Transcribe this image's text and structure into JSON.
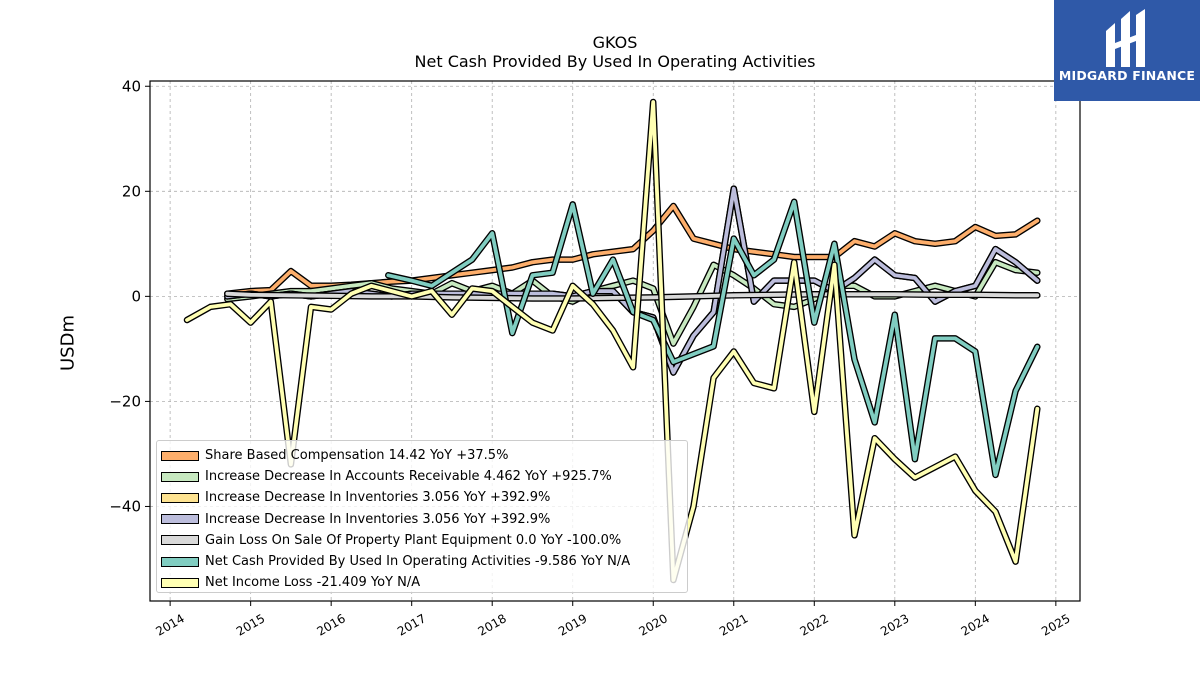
{
  "chart_data": {
    "type": "line",
    "title": "GKOS",
    "subtitle": "Net Cash Provided By Used In Operating Activities",
    "ylabel": "USDm",
    "xlim": [
      2013.75,
      2025.3
    ],
    "ylim": [
      -58,
      41
    ],
    "yticks": [
      -40,
      -20,
      0,
      20,
      40
    ],
    "ytick_labels": [
      "−40",
      "−20",
      "0",
      "20",
      "40"
    ],
    "xticks": [
      2014,
      2015,
      2016,
      2017,
      2018,
      2019,
      2020,
      2021,
      2022,
      2023,
      2024,
      2025
    ],
    "xtick_labels": [
      "2014",
      "2015",
      "2016",
      "2017",
      "2018",
      "2019",
      "2020",
      "2021",
      "2022",
      "2023",
      "2024",
      "2025"
    ],
    "grid": true,
    "legend_position": "lower-left",
    "series": [
      {
        "name": "Share Based Compensation",
        "legend": "Share Based Compensation  14.42 YoY +37.5%",
        "color": "#fdae6b",
        "points": [
          [
            2014.71,
            0.5
          ],
          [
            2015.0,
            1.0
          ],
          [
            2015.25,
            1.2
          ],
          [
            2015.5,
            4.8
          ],
          [
            2015.75,
            2.0
          ],
          [
            2016.0,
            2.0
          ],
          [
            2016.25,
            2.2
          ],
          [
            2016.5,
            2.5
          ],
          [
            2016.75,
            2.8
          ],
          [
            2017.0,
            3.0
          ],
          [
            2017.25,
            3.5
          ],
          [
            2017.5,
            4.0
          ],
          [
            2017.75,
            4.5
          ],
          [
            2018.0,
            5.0
          ],
          [
            2018.25,
            5.5
          ],
          [
            2018.5,
            6.5
          ],
          [
            2018.75,
            7.0
          ],
          [
            2019.0,
            7.0
          ],
          [
            2019.25,
            8.0
          ],
          [
            2019.5,
            8.5
          ],
          [
            2019.75,
            9.0
          ],
          [
            2020.0,
            12.5
          ],
          [
            2020.25,
            17.2
          ],
          [
            2020.5,
            11.0
          ],
          [
            2020.75,
            10.0
          ],
          [
            2021.0,
            9.0
          ],
          [
            2021.25,
            8.5
          ],
          [
            2021.5,
            8.0
          ],
          [
            2021.75,
            7.5
          ],
          [
            2022.0,
            7.5
          ],
          [
            2022.25,
            7.5
          ],
          [
            2022.5,
            10.5
          ],
          [
            2022.75,
            9.5
          ],
          [
            2023.0,
            12.0
          ],
          [
            2023.25,
            10.5
          ],
          [
            2023.5,
            10.0
          ],
          [
            2023.75,
            10.5
          ],
          [
            2024.0,
            13.2
          ],
          [
            2024.25,
            11.5
          ],
          [
            2024.5,
            11.8
          ],
          [
            2024.77,
            14.4
          ]
        ]
      },
      {
        "name": "Increase Decrease In Accounts Receivable",
        "legend": "Increase Decrease In Accounts Receivable  4.462 YoY +925.7%",
        "color": "#c7e9c0",
        "points": [
          [
            2014.71,
            -0.5
          ],
          [
            2015.0,
            0.0
          ],
          [
            2015.25,
            0.5
          ],
          [
            2015.5,
            1.0
          ],
          [
            2015.75,
            1.0
          ],
          [
            2016.0,
            1.5
          ],
          [
            2016.25,
            2.0
          ],
          [
            2016.5,
            2.5
          ],
          [
            2016.75,
            1.5
          ],
          [
            2017.0,
            1.0
          ],
          [
            2017.25,
            0.5
          ],
          [
            2017.5,
            2.5
          ],
          [
            2017.75,
            1.0
          ],
          [
            2018.0,
            2.0
          ],
          [
            2018.25,
            0.5
          ],
          [
            2018.5,
            3.0
          ],
          [
            2018.75,
            0.0
          ],
          [
            2019.0,
            -1.0
          ],
          [
            2019.25,
            1.0
          ],
          [
            2019.5,
            2.0
          ],
          [
            2019.75,
            3.0
          ],
          [
            2020.0,
            1.5
          ],
          [
            2020.25,
            -9.0
          ],
          [
            2020.5,
            -2.0
          ],
          [
            2020.75,
            6.0
          ],
          [
            2021.0,
            4.0
          ],
          [
            2021.25,
            1.5
          ],
          [
            2021.5,
            -1.5
          ],
          [
            2021.75,
            -2.0
          ],
          [
            2022.0,
            -0.5
          ],
          [
            2022.25,
            2.0
          ],
          [
            2022.5,
            2.0
          ],
          [
            2022.75,
            0.0
          ],
          [
            2023.0,
            0.0
          ],
          [
            2023.25,
            1.0
          ],
          [
            2023.5,
            2.0
          ],
          [
            2023.75,
            1.0
          ],
          [
            2024.0,
            0.0
          ],
          [
            2024.25,
            6.5
          ],
          [
            2024.5,
            5.0
          ],
          [
            2024.77,
            4.5
          ]
        ]
      },
      {
        "name": "Increase Decrease In Inventories",
        "legend": "Increase Decrease In Inventories  3.056 YoY +392.9%",
        "color": "#fee391",
        "points": [
          [
            2014.71,
            0.0
          ],
          [
            2015.0,
            0.5
          ],
          [
            2015.25,
            0.0
          ],
          [
            2015.5,
            0.5
          ],
          [
            2015.75,
            0.0
          ],
          [
            2016.0,
            0.5
          ],
          [
            2016.25,
            1.0
          ],
          [
            2016.5,
            0.5
          ],
          [
            2016.75,
            0.0
          ],
          [
            2017.0,
            0.5
          ],
          [
            2017.25,
            0.5
          ],
          [
            2017.5,
            0.5
          ],
          [
            2017.75,
            0.5
          ],
          [
            2018.0,
            0.5
          ],
          [
            2018.25,
            0.5
          ],
          [
            2018.5,
            0.5
          ],
          [
            2018.75,
            0.5
          ],
          [
            2019.0,
            0.0
          ],
          [
            2019.25,
            1.0
          ],
          [
            2019.5,
            1.0
          ],
          [
            2019.75,
            -3.0
          ],
          [
            2020.0,
            -4.0
          ],
          [
            2020.25,
            -14.5
          ],
          [
            2020.5,
            -7.5
          ],
          [
            2020.75,
            -3.0
          ],
          [
            2021.0,
            20.5
          ],
          [
            2021.25,
            -1.0
          ],
          [
            2021.5,
            3.0
          ],
          [
            2021.75,
            3.0
          ],
          [
            2022.0,
            3.0
          ],
          [
            2022.25,
            1.0
          ],
          [
            2022.5,
            3.5
          ],
          [
            2022.75,
            7.0
          ],
          [
            2023.0,
            4.0
          ],
          [
            2023.25,
            3.5
          ],
          [
            2023.5,
            -1.0
          ],
          [
            2023.75,
            1.0
          ],
          [
            2024.0,
            2.0
          ],
          [
            2024.25,
            9.0
          ],
          [
            2024.5,
            6.5
          ],
          [
            2024.77,
            3.0
          ]
        ]
      },
      {
        "name": "Increase Decrease In Inventories",
        "legend": "Increase Decrease In Inventories  3.056 YoY +392.9%",
        "color": "#bcbddc",
        "points": [
          [
            2014.71,
            0.0
          ],
          [
            2015.0,
            0.5
          ],
          [
            2015.25,
            0.0
          ],
          [
            2015.5,
            0.5
          ],
          [
            2015.75,
            0.0
          ],
          [
            2016.0,
            0.5
          ],
          [
            2016.25,
            1.0
          ],
          [
            2016.5,
            0.5
          ],
          [
            2016.75,
            0.0
          ],
          [
            2017.0,
            0.5
          ],
          [
            2017.25,
            0.5
          ],
          [
            2017.5,
            0.5
          ],
          [
            2017.75,
            0.5
          ],
          [
            2018.0,
            0.5
          ],
          [
            2018.25,
            0.5
          ],
          [
            2018.5,
            0.5
          ],
          [
            2018.75,
            0.5
          ],
          [
            2019.0,
            0.0
          ],
          [
            2019.25,
            1.0
          ],
          [
            2019.5,
            1.0
          ],
          [
            2019.75,
            -3.0
          ],
          [
            2020.0,
            -4.0
          ],
          [
            2020.25,
            -14.5
          ],
          [
            2020.5,
            -7.5
          ],
          [
            2020.75,
            -3.0
          ],
          [
            2021.0,
            20.5
          ],
          [
            2021.25,
            -1.0
          ],
          [
            2021.5,
            3.0
          ],
          [
            2021.75,
            3.0
          ],
          [
            2022.0,
            3.0
          ],
          [
            2022.25,
            1.0
          ],
          [
            2022.5,
            3.5
          ],
          [
            2022.75,
            7.0
          ],
          [
            2023.0,
            4.0
          ],
          [
            2023.25,
            3.5
          ],
          [
            2023.5,
            -1.0
          ],
          [
            2023.75,
            1.0
          ],
          [
            2024.0,
            2.0
          ],
          [
            2024.25,
            9.0
          ],
          [
            2024.5,
            6.5
          ],
          [
            2024.77,
            3.0
          ]
        ]
      },
      {
        "name": "Gain Loss On Sale Of Property Plant Equipment",
        "legend": "Gain Loss On Sale Of Property Plant Equipment  0.0 YoY -100.0%",
        "color": "#d9d9d9",
        "points": [
          [
            2014.71,
            0.5
          ],
          [
            2015.0,
            0.3
          ],
          [
            2015.5,
            0.2
          ],
          [
            2016.0,
            0.1
          ],
          [
            2016.5,
            0.0
          ],
          [
            2017.0,
            0.0
          ],
          [
            2017.5,
            -0.2
          ],
          [
            2018.0,
            -0.3
          ],
          [
            2018.5,
            -0.4
          ],
          [
            2019.0,
            -0.4
          ],
          [
            2019.5,
            -0.3
          ],
          [
            2020.0,
            -0.2
          ],
          [
            2020.5,
            0.0
          ],
          [
            2021.0,
            0.2
          ],
          [
            2021.5,
            0.3
          ],
          [
            2022.0,
            0.4
          ],
          [
            2022.5,
            0.4
          ],
          [
            2023.0,
            0.4
          ],
          [
            2023.5,
            0.3
          ],
          [
            2024.0,
            0.3
          ],
          [
            2024.5,
            0.2
          ],
          [
            2024.77,
            0.2
          ]
        ]
      },
      {
        "name": "Net Cash Provided By Used In Operating Activities",
        "legend": "Net Cash Provided By Used In Operating Activities  -9.586 YoY N/A",
        "color": "#80cdc1",
        "points": [
          [
            2016.71,
            4.0
          ],
          [
            2017.0,
            3.0
          ],
          [
            2017.25,
            2.0
          ],
          [
            2017.5,
            4.5
          ],
          [
            2017.75,
            7.0
          ],
          [
            2018.0,
            12.0
          ],
          [
            2018.25,
            -7.0
          ],
          [
            2018.5,
            4.0
          ],
          [
            2018.75,
            4.5
          ],
          [
            2019.0,
            17.5
          ],
          [
            2019.25,
            0.5
          ],
          [
            2019.5,
            7.0
          ],
          [
            2019.75,
            -3.0
          ],
          [
            2020.0,
            -4.5
          ],
          [
            2020.25,
            -12.5
          ],
          [
            2020.5,
            -11.0
          ],
          [
            2020.75,
            -9.5
          ],
          [
            2021.0,
            11.0
          ],
          [
            2021.25,
            4.0
          ],
          [
            2021.5,
            7.0
          ],
          [
            2021.75,
            18.0
          ],
          [
            2022.0,
            -5.0
          ],
          [
            2022.25,
            10.0
          ],
          [
            2022.5,
            -12.0
          ],
          [
            2022.75,
            -24.0
          ],
          [
            2023.0,
            -3.5
          ],
          [
            2023.25,
            -31.0
          ],
          [
            2023.5,
            -8.0
          ],
          [
            2023.75,
            -8.0
          ],
          [
            2024.0,
            -10.5
          ],
          [
            2024.25,
            -34.0
          ],
          [
            2024.5,
            -18.0
          ],
          [
            2024.77,
            -9.6
          ]
        ]
      },
      {
        "name": "Net Income Loss",
        "legend": "Net Income Loss  -21.409 YoY N/A",
        "color": "#ffffb3",
        "points": [
          [
            2014.21,
            -4.5
          ],
          [
            2014.5,
            -2.0
          ],
          [
            2014.75,
            -1.5
          ],
          [
            2015.0,
            -5.0
          ],
          [
            2015.25,
            -1.0
          ],
          [
            2015.5,
            -32.0
          ],
          [
            2015.75,
            -2.0
          ],
          [
            2016.0,
            -2.5
          ],
          [
            2016.25,
            0.5
          ],
          [
            2016.5,
            2.0
          ],
          [
            2016.75,
            1.0
          ],
          [
            2017.0,
            0.0
          ],
          [
            2017.25,
            1.0
          ],
          [
            2017.5,
            -3.5
          ],
          [
            2017.75,
            1.5
          ],
          [
            2018.0,
            1.0
          ],
          [
            2018.25,
            -2.0
          ],
          [
            2018.5,
            -5.0
          ],
          [
            2018.75,
            -6.5
          ],
          [
            2019.0,
            2.0
          ],
          [
            2019.25,
            -1.5
          ],
          [
            2019.5,
            -6.5
          ],
          [
            2019.75,
            -13.5
          ],
          [
            2020.0,
            37.0
          ],
          [
            2020.25,
            -54.0
          ],
          [
            2020.5,
            -40.0
          ],
          [
            2020.75,
            -15.5
          ],
          [
            2021.0,
            -10.5
          ],
          [
            2021.25,
            -16.5
          ],
          [
            2021.5,
            -17.5
          ],
          [
            2021.75,
            6.5
          ],
          [
            2022.0,
            -22.0
          ],
          [
            2022.25,
            6.0
          ],
          [
            2022.5,
            -45.5
          ],
          [
            2022.75,
            -27.0
          ],
          [
            2023.0,
            -31.0
          ],
          [
            2023.25,
            -34.5
          ],
          [
            2023.5,
            -32.5
          ],
          [
            2023.75,
            -30.5
          ],
          [
            2024.0,
            -37.0
          ],
          [
            2024.25,
            -41.0
          ],
          [
            2024.5,
            -50.5
          ],
          [
            2024.77,
            -21.4
          ]
        ]
      }
    ]
  },
  "logo": {
    "text": "MIDGARD FINANCE"
  }
}
